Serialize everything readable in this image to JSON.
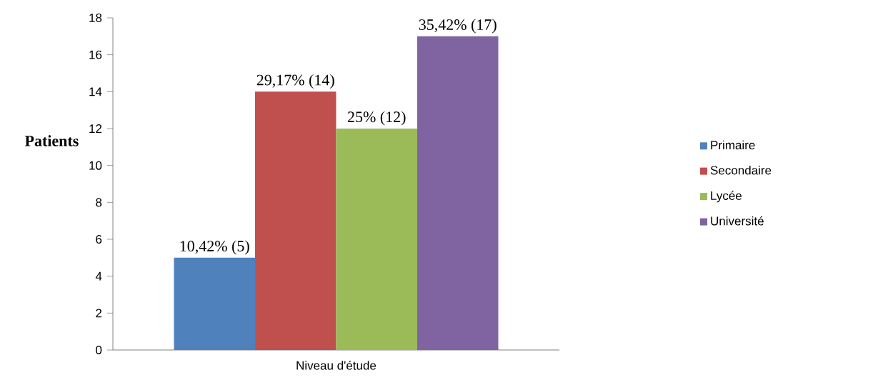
{
  "chart_data": {
    "type": "bar",
    "ylabel": "Patients",
    "categories": [
      "Niveau d'étude"
    ],
    "series": [
      {
        "name": "Primaire",
        "color": "#4f81bd",
        "values": [
          5
        ],
        "value_labels": [
          "10,42% (5)"
        ]
      },
      {
        "name": "Secondaire",
        "color": "#c0504d",
        "values": [
          14
        ],
        "value_labels": [
          "29,17% (14)"
        ]
      },
      {
        "name": "Lycée",
        "color": "#9bbb59",
        "values": [
          12
        ],
        "value_labels": [
          "25% (12)"
        ]
      },
      {
        "name": "Université",
        "color": "#8064a2",
        "values": [
          17
        ],
        "value_labels": [
          "35,42% (17)"
        ]
      }
    ],
    "ylim": [
      0,
      18
    ],
    "yticks": [
      0,
      2,
      4,
      6,
      8,
      10,
      12,
      14,
      16,
      18
    ],
    "legend": "right",
    "grid": false
  }
}
